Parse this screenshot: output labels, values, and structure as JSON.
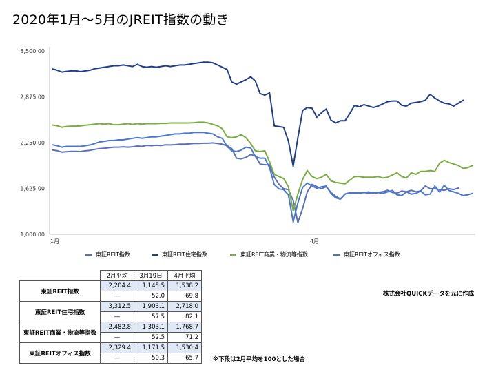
{
  "title": "2020年1月〜5月のJREIT指数の動き",
  "chart_data": {
    "type": "line",
    "ylim": [
      1000,
      3500
    ],
    "y_ticks": [
      "3,500.00",
      "2,875.00",
      "2,250.00",
      "1,625.00",
      "1,000.00"
    ],
    "y_tick_values": [
      3500,
      2875,
      2250,
      1625,
      1000
    ],
    "x_tick_labels": [
      "1月",
      "4月"
    ],
    "x_tick_index": [
      0,
      55
    ],
    "legend_position": "bottom",
    "grid": false,
    "series": [
      {
        "name": "東証REIT指数",
        "color": "#5b70b8",
        "values": [
          2150,
          2140,
          2120,
          2125,
          2130,
          2130,
          2128,
          2138,
          2145,
          2158,
          2168,
          2172,
          2180,
          2188,
          2188,
          2193,
          2188,
          2193,
          2203,
          2198,
          2212,
          2208,
          2213,
          2210,
          2220,
          2218,
          2222,
          2228,
          2228,
          2232,
          2238,
          2238,
          2242,
          2242,
          2246,
          2238,
          2228,
          2208,
          2168,
          2038,
          2028,
          2048,
          2088,
          2068,
          1958,
          1948,
          1948,
          1780,
          1680,
          1620,
          1610,
          1460,
          1160,
          1350,
          1580,
          1680,
          1650,
          1620,
          1650,
          1570,
          1520,
          1480,
          1550,
          1560,
          1560,
          1560,
          1570,
          1560,
          1570,
          1570,
          1580,
          1600,
          1570,
          1560,
          1590,
          1580,
          1600,
          1580,
          1590,
          1660,
          1620,
          1620,
          1610,
          1600,
          1620,
          1610,
          1630
        ]
      },
      {
        "name": "東証REIT住宅指数",
        "color": "#1f3f8c",
        "values": [
          3255,
          3238,
          3212,
          3222,
          3228,
          3228,
          3218,
          3228,
          3238,
          3258,
          3268,
          3278,
          3288,
          3298,
          3298,
          3308,
          3298,
          3288,
          3318,
          3288,
          3278,
          3288,
          3278,
          3288,
          3298,
          3288,
          3298,
          3308,
          3308,
          3318,
          3328,
          3338,
          3348,
          3348,
          3338,
          3308,
          3278,
          3248,
          3078,
          3048,
          3078,
          3108,
          3148,
          3088,
          2918,
          2898,
          2928,
          2478,
          2468,
          2458,
          2268,
          1928,
          2318,
          2688,
          2728,
          2718,
          2598,
          2658,
          2708,
          2558,
          2518,
          2548,
          2548,
          2648,
          2758,
          2738,
          2768,
          2748,
          2728,
          2748,
          2778,
          2808,
          2818,
          2818,
          2758,
          2748,
          2788,
          2798,
          2808,
          2828,
          2908,
          2858,
          2818,
          2788,
          2778,
          2748,
          2788,
          2828
        ]
      },
      {
        "name": "東証REIT商業・物流等指数",
        "color": "#7aad40",
        "values": [
          2490,
          2480,
          2460,
          2470,
          2475,
          2475,
          2478,
          2488,
          2493,
          2502,
          2508,
          2502,
          2508,
          2493,
          2493,
          2502,
          2508,
          2498,
          2508,
          2502,
          2508,
          2508,
          2508,
          2512,
          2512,
          2518,
          2518,
          2518,
          2518,
          2518,
          2522,
          2528,
          2528,
          2518,
          2498,
          2478,
          2438,
          2328,
          2318,
          2328,
          2358,
          2318,
          2238,
          2138,
          2128,
          2138,
          1988,
          1818,
          1788,
          1758,
          1648,
          1318,
          1548,
          1748,
          1868,
          1788,
          1758,
          1778,
          1818,
          1728,
          1708,
          1698,
          1688,
          1738,
          1788,
          1788,
          1778,
          1778,
          1778,
          1788,
          1768,
          1778,
          1808,
          1838,
          1788,
          1768,
          1838,
          1818,
          1858,
          1858,
          1868,
          1858,
          1968,
          2008,
          1978,
          1958,
          1938,
          1898,
          1908,
          1938
        ]
      },
      {
        "name": "東証REITオフィス指数",
        "color": "#4a78d0",
        "values": [
          2220,
          2208,
          2188,
          2198,
          2198,
          2198,
          2198,
          2208,
          2218,
          2238,
          2258,
          2268,
          2278,
          2278,
          2288,
          2288,
          2298,
          2308,
          2318,
          2308,
          2318,
          2328,
          2328,
          2338,
          2348,
          2358,
          2368,
          2368,
          2378,
          2378,
          2388,
          2388,
          2388,
          2378,
          2368,
          2328,
          2308,
          2198,
          2138,
          2128,
          2148,
          2188,
          2178,
          2058,
          2038,
          2038,
          1908,
          1678,
          1618,
          1608,
          1538,
          1168,
          1428,
          1638,
          1698,
          1658,
          1628,
          1648,
          1658,
          1558,
          1498,
          1478,
          1548,
          1568,
          1568,
          1568,
          1568,
          1578,
          1558,
          1568,
          1558,
          1578,
          1598,
          1538,
          1528,
          1578,
          1548,
          1558,
          1588,
          1538,
          1548,
          1658,
          1578,
          1668,
          1598,
          1578,
          1558,
          1528,
          1538,
          1558
        ]
      }
    ]
  },
  "table": {
    "headers": [
      "2月平均",
      "3月19日",
      "4月平均"
    ],
    "rows": [
      {
        "label": "東証REIT指数",
        "values": [
          "2,204.4",
          "1,145.5",
          "1,538.2"
        ],
        "ratios": [
          "—",
          "52.0",
          "69.8"
        ]
      },
      {
        "label": "東証REIT住宅指数",
        "values": [
          "3,312.5",
          "1,903.1",
          "2,718.0"
        ],
        "ratios": [
          "—",
          "57.5",
          "82.1"
        ]
      },
      {
        "label": "東証REIT商業・物流等指数",
        "values": [
          "2,482.8",
          "1,303.1",
          "1,768.7"
        ],
        "ratios": [
          "—",
          "52.5",
          "71.2"
        ]
      },
      {
        "label": "東証REITオフィス指数",
        "values": [
          "2,329.4",
          "1,171.5",
          "1,530.4"
        ],
        "ratios": [
          "—",
          "50.3",
          "65.7"
        ]
      }
    ]
  },
  "source_note": "株式会社QUICKデータを元に作成",
  "footnote": "※下段は2月平均を100とした場合"
}
